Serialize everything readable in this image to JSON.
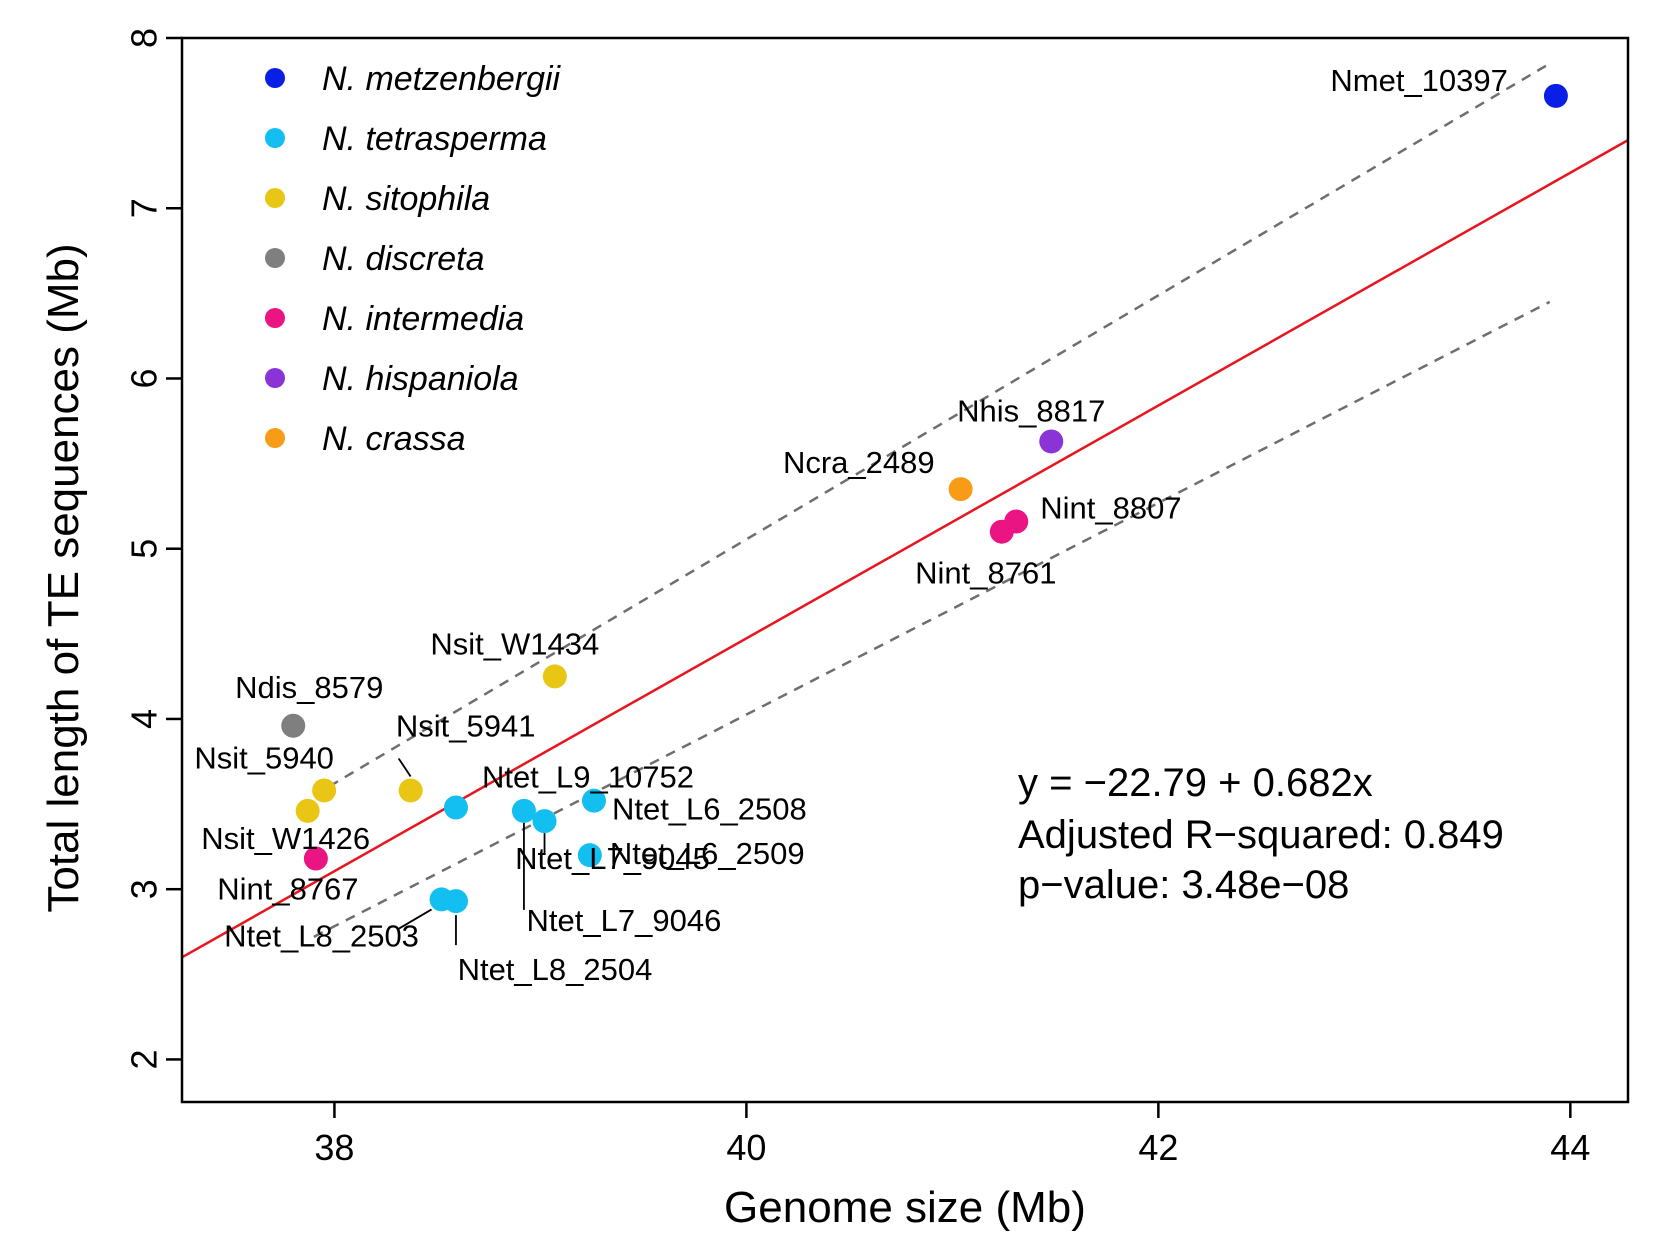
{
  "chart_data": {
    "type": "scatter",
    "title": "",
    "xlabel": "Genome size (Mb)",
    "ylabel": "Total length of TE sequences (Mb)",
    "xlim": [
      37.26,
      44.28
    ],
    "ylim": [
      1.75,
      8.0
    ],
    "xticks": [
      38,
      40,
      42,
      44
    ],
    "yticks": [
      2,
      3,
      4,
      5,
      6,
      7,
      8
    ],
    "grid": false,
    "legend_position": "top-left",
    "series": [
      {
        "name": "N. metzenbergii",
        "color": "#0a1fe6",
        "points": [
          {
            "label": "Nmet_10397",
            "x": 43.93,
            "y": 7.66
          }
        ]
      },
      {
        "name": "N. tetrasperma",
        "color": "#12bff0",
        "points": [
          {
            "label": "Ntet_L9_10752",
            "x": 38.59,
            "y": 3.48
          },
          {
            "label": "Ntet_L6_2508",
            "x": 39.26,
            "y": 3.52
          },
          {
            "label": "Ntet_L6_2509",
            "x": 39.24,
            "y": 3.2
          },
          {
            "label": "Ntet_L7_9045",
            "x": 39.02,
            "y": 3.4
          },
          {
            "label": "Ntet_L7_9046",
            "x": 38.92,
            "y": 3.46
          },
          {
            "label": "Ntet_L8_2503",
            "x": 38.52,
            "y": 2.94
          },
          {
            "label": "Ntet_L8_2504",
            "x": 38.59,
            "y": 2.93
          }
        ]
      },
      {
        "name": "N. sitophila",
        "color": "#e8c613",
        "points": [
          {
            "label": "Nsit_W1434",
            "x": 39.07,
            "y": 4.25
          },
          {
            "label": "Nsit_5941",
            "x": 38.37,
            "y": 3.58
          },
          {
            "label": "Nsit_5940",
            "x": 37.95,
            "y": 3.58
          },
          {
            "label": "Nsit_W1426",
            "x": 37.87,
            "y": 3.46
          }
        ]
      },
      {
        "name": "N. discreta",
        "color": "#7f7f7f",
        "points": [
          {
            "label": "Ndis_8579",
            "x": 37.8,
            "y": 3.96
          }
        ]
      },
      {
        "name": "N. intermedia",
        "color": "#ea1483",
        "points": [
          {
            "label": "Nint_8807",
            "x": 41.31,
            "y": 5.16
          },
          {
            "label": "Nint_8761",
            "x": 41.24,
            "y": 5.1
          },
          {
            "label": "Nint_8767",
            "x": 37.91,
            "y": 3.18
          }
        ]
      },
      {
        "name": "N. hispaniola",
        "color": "#8a34d8",
        "points": [
          {
            "label": "Nhis_8817",
            "x": 41.48,
            "y": 5.63
          }
        ]
      },
      {
        "name": "N. crassa",
        "color": "#f89c18",
        "points": [
          {
            "label": "Ncra_2489",
            "x": 41.04,
            "y": 5.35
          }
        ]
      }
    ],
    "fit_line": {
      "color": "#e8141e",
      "x": [
        37.26,
        44.28
      ],
      "y": [
        2.6,
        7.4
      ]
    },
    "confidence_band": {
      "color": "#6e6e6e",
      "upper": {
        "x": [
          37.9,
          43.9
        ],
        "y": [
          3.55,
          7.85
        ]
      },
      "lower": {
        "x": [
          37.9,
          43.9
        ],
        "y": [
          2.72,
          6.45
        ]
      }
    },
    "stats": {
      "equation": "y = −22.79 + 0.682x",
      "r_squared": "Adjusted R−squared: 0.849",
      "p_value": "p−value: 3.48e−08"
    }
  }
}
